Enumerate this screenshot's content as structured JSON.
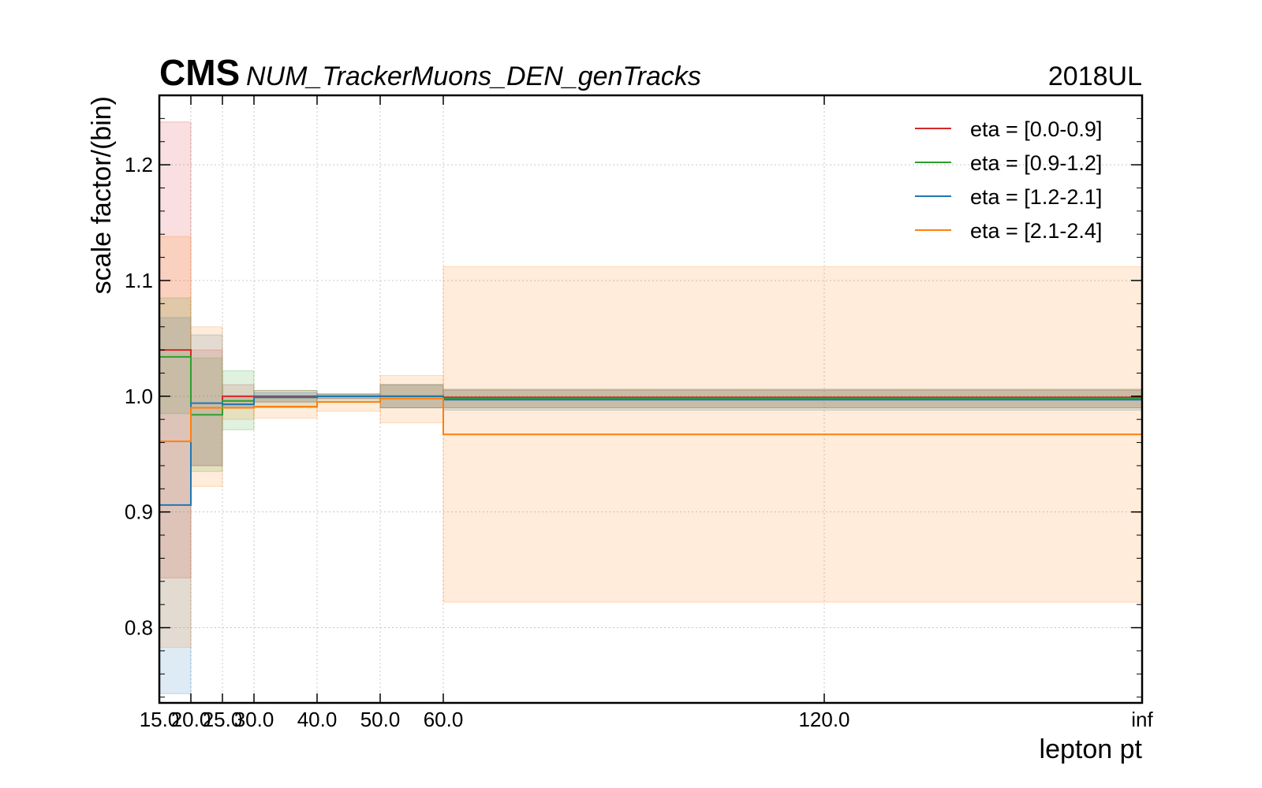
{
  "chart_data": {
    "type": "line",
    "step": true,
    "experiment": "CMS",
    "title": "NUM_TrackerMuons_DEN_genTracks",
    "year_label": "2018UL",
    "xlabel": "lepton pt",
    "ylabel": "scale factor/(bin)",
    "x_ticks": [
      "15.0",
      "20.0",
      "25.0",
      "30.0",
      "40.0",
      "50.0",
      "60.0",
      "120.0",
      "inf"
    ],
    "x_edges_label_index": [
      0,
      1,
      2,
      3,
      4,
      5,
      6,
      8
    ],
    "ylim": [
      0.735,
      1.26
    ],
    "y_ticks": [
      0.8,
      0.9,
      1.0,
      1.1,
      1.2
    ],
    "grid": true,
    "legend_position": "top-right",
    "series": [
      {
        "name": "eta = [0.0-0.9]",
        "color": "#d62728",
        "values": [
          1.04,
          0.99,
          1.0,
          1.0,
          1.0,
          1.0,
          0.999
        ],
        "unc_low": [
          0.843,
          0.94,
          0.99,
          0.995,
          0.998,
          0.99,
          0.99
        ],
        "unc_high": [
          1.237,
          1.04,
          1.01,
          1.005,
          1.002,
          1.01,
          1.005
        ]
      },
      {
        "name": "eta = [0.9-1.2]",
        "color": "#2ca02c",
        "values": [
          1.034,
          0.984,
          0.996,
          0.999,
          1.0,
          1.0,
          0.998
        ],
        "unc_low": [
          0.985,
          0.935,
          0.971,
          0.99,
          0.995,
          0.99,
          0.99
        ],
        "unc_high": [
          1.085,
          1.033,
          1.022,
          1.005,
          1.002,
          1.01,
          1.006
        ]
      },
      {
        "name": "eta = [1.2-2.1]",
        "color": "#1f77b4",
        "values": [
          0.906,
          0.994,
          0.993,
          0.999,
          1.0,
          1.0,
          0.997
        ],
        "unc_low": [
          0.743,
          0.94,
          0.99,
          0.995,
          0.998,
          0.99,
          0.988
        ],
        "unc_high": [
          1.068,
          1.053,
          1.0,
          1.003,
          1.002,
          1.01,
          1.006
        ]
      },
      {
        "name": "eta = [2.1-2.4]",
        "color": "#ff7f0e",
        "values": [
          0.961,
          0.99,
          0.99,
          0.991,
          0.995,
          0.998,
          0.967
        ],
        "unc_low": [
          0.783,
          0.922,
          0.98,
          0.981,
          0.987,
          0.977,
          0.822
        ],
        "unc_high": [
          1.138,
          1.06,
          1.0,
          1.0,
          1.0,
          1.018,
          1.112
        ]
      }
    ]
  }
}
